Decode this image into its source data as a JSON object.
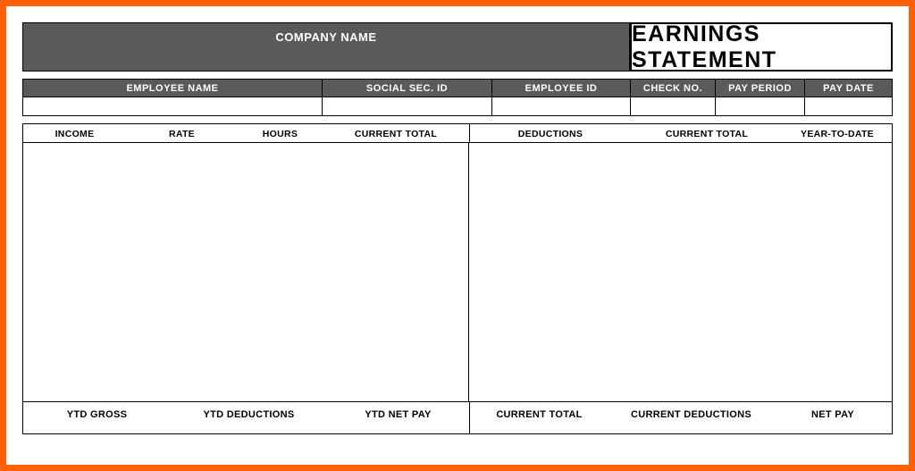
{
  "colors": {
    "page_border": "#ff6008",
    "header_bg": "#5a5a5a",
    "header_text": "#ffffff",
    "border": "#000000",
    "background": "#ffffff"
  },
  "header": {
    "company_label": "COMPANY NAME",
    "statement_title": "EARNINGS STATEMENT"
  },
  "employee_info": {
    "labels": {
      "name": "EMPLOYEE NAME",
      "ssn": "SOCIAL SEC. ID",
      "employee_id": "EMPLOYEE ID",
      "check_no": "CHECK NO.",
      "pay_period": "PAY PERIOD",
      "pay_date": "PAY DATE"
    },
    "values": {
      "name": "",
      "ssn": "",
      "employee_id": "",
      "check_no": "",
      "pay_period": "",
      "pay_date": ""
    }
  },
  "columns": {
    "income": "INCOME",
    "rate": "RATE",
    "hours": "HOURS",
    "current_total_1": "CURRENT TOTAL",
    "deductions": "DEDUCTIONS",
    "current_total_2": "CURRENT TOTAL",
    "year_to_date": "YEAR-TO-DATE"
  },
  "footer": {
    "ytd_gross": "YTD GROSS",
    "ytd_deductions": "YTD DEDUCTIONS",
    "ytd_net_pay": "YTD NET PAY",
    "current_total": "CURRENT TOTAL",
    "current_deductions": "CURRENT DEDUCTIONS",
    "net_pay": "NET PAY"
  },
  "typography": {
    "title_fontsize": 25,
    "header_fontsize": 13,
    "label_fontsize": 11,
    "column_fontsize": 10.5
  }
}
